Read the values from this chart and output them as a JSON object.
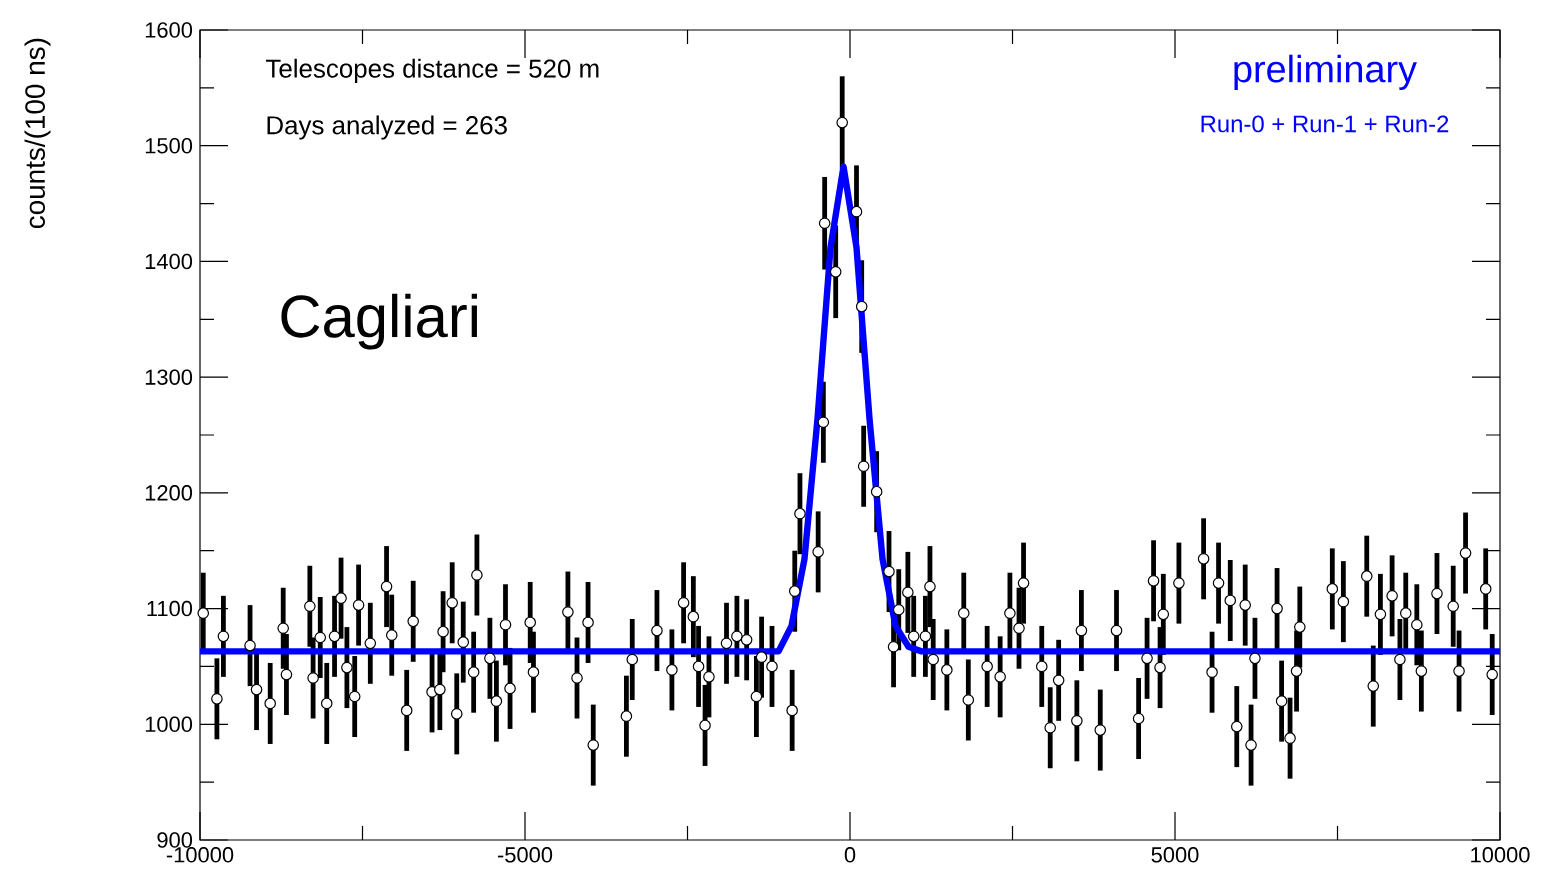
{
  "chart_data": {
    "type": "scatter",
    "ylabel": "counts/(100 ns)",
    "annotations": [
      "Telescopes distance = 520 m",
      "Days analyzed = 263",
      "Cagliari",
      "preliminary",
      "Run-0 + Run-1 + Run-2"
    ],
    "xlim": [
      -10000,
      10000
    ],
    "xticks": [
      -10000,
      -5000,
      0,
      5000,
      10000
    ],
    "ylim": [
      900,
      1600
    ],
    "yticks": [
      900,
      1000,
      1100,
      1200,
      1300,
      1400,
      1500,
      1600
    ],
    "series": [
      {
        "marker": "circle",
        "color": "#000000",
        "x": [
          -9950,
          -9740,
          -9640,
          -9230,
          -9130,
          -8920,
          -8720,
          -8670,
          -8310,
          -8260,
          -8150,
          -8050,
          -7930,
          -7830,
          -7740,
          -7620,
          -7560,
          -7380,
          -7130,
          -7050,
          -6820,
          -6720,
          -6430,
          -6310,
          -6260,
          -6120,
          -6050,
          -5950,
          -5790,
          -5740,
          -5540,
          -5440,
          -5300,
          -5230,
          -4920,
          -4870,
          -4340,
          -4200,
          -4030,
          -3950,
          -3440,
          -3350,
          -2970,
          -2740,
          -2560,
          -2410,
          -2330,
          -2230,
          -2170,
          -1900,
          -1740,
          -1590,
          -1440,
          -1360,
          -1200,
          -890,
          -850,
          -770,
          -490,
          -410,
          -390,
          -220,
          -120,
          100,
          180,
          210,
          410,
          600,
          670,
          750,
          890,
          980,
          1160,
          1230,
          1280,
          1490,
          1750,
          1820,
          2110,
          2310,
          2460,
          2600,
          2670,
          2950,
          3080,
          3210,
          3490,
          3560,
          3850,
          4100,
          4440,
          4570,
          4670,
          4770,
          4820,
          5060,
          5440,
          5570,
          5670,
          5850,
          5950,
          6080,
          6170,
          6230,
          6570,
          6640,
          6770,
          6870,
          6920,
          7420,
          7590,
          7950,
          8050,
          8160,
          8340,
          8460,
          8550,
          8720,
          8790,
          9030,
          9280,
          9370,
          9470,
          9780,
          9880
        ],
        "values": [
          1096,
          1022,
          1076,
          1068,
          1030,
          1018,
          1083,
          1043,
          1102,
          1040,
          1075,
          1018,
          1076,
          1109,
          1049,
          1024,
          1103,
          1070,
          1119,
          1077,
          1012,
          1089,
          1028,
          1030,
          1080,
          1105,
          1009,
          1071,
          1045,
          1129,
          1057,
          1020,
          1086,
          1031,
          1088,
          1045,
          1097,
          1040,
          1088,
          982,
          1007,
          1056,
          1081,
          1047,
          1105,
          1093,
          1050,
          999,
          1041,
          1070,
          1076,
          1073,
          1024,
          1058,
          1050,
          1012,
          1115,
          1182,
          1149,
          1261,
          1433,
          1391,
          1520,
          1443,
          1361,
          1223,
          1201,
          1132,
          1067,
          1099,
          1114,
          1076,
          1076,
          1119,
          1056,
          1047,
          1096,
          1021,
          1050,
          1041,
          1096,
          1083,
          1122,
          1050,
          997,
          1038,
          1003,
          1081,
          995,
          1081,
          1005,
          1057,
          1124,
          1049,
          1095,
          1122,
          1143,
          1045,
          1122,
          1107,
          998,
          1103,
          982,
          1057,
          1100,
          1020,
          988,
          1046,
          1084,
          1117,
          1106,
          1128,
          1033,
          1095,
          1111,
          1056,
          1096,
          1086,
          1046,
          1113,
          1102,
          1046,
          1148,
          1117,
          1043
        ],
        "errors": [
          35,
          35,
          35,
          35,
          35,
          35,
          35,
          35,
          35,
          35,
          35,
          35,
          35,
          35,
          35,
          35,
          35,
          35,
          35,
          35,
          35,
          35,
          35,
          35,
          35,
          35,
          35,
          35,
          35,
          35,
          35,
          35,
          35,
          35,
          35,
          35,
          35,
          35,
          35,
          35,
          35,
          35,
          35,
          35,
          35,
          35,
          35,
          35,
          35,
          35,
          35,
          35,
          35,
          35,
          35,
          35,
          35,
          35,
          35,
          35,
          40,
          40,
          40,
          40,
          40,
          35,
          35,
          35,
          35,
          35,
          35,
          35,
          35,
          35,
          35,
          35,
          35,
          35,
          35,
          35,
          35,
          35,
          35,
          35,
          35,
          35,
          35,
          35,
          35,
          35,
          35,
          35,
          35,
          35,
          35,
          35,
          35,
          35,
          35,
          35,
          35,
          35,
          35,
          35,
          35,
          35,
          35,
          35,
          35,
          35,
          35,
          35,
          35,
          35,
          35,
          35,
          35,
          35,
          35,
          35,
          35,
          35,
          35,
          35,
          35
        ]
      },
      {
        "type": "line",
        "color": "#0000ff",
        "x": [
          -10000,
          -1100,
          -900,
          -700,
          -500,
          -300,
          -100,
          100,
          300,
          500,
          700,
          900,
          1100,
          10000
        ],
        "values": [
          1063,
          1063,
          1085,
          1143,
          1264,
          1412,
          1482,
          1412,
          1264,
          1143,
          1085,
          1067,
          1063,
          1063
        ]
      }
    ]
  }
}
